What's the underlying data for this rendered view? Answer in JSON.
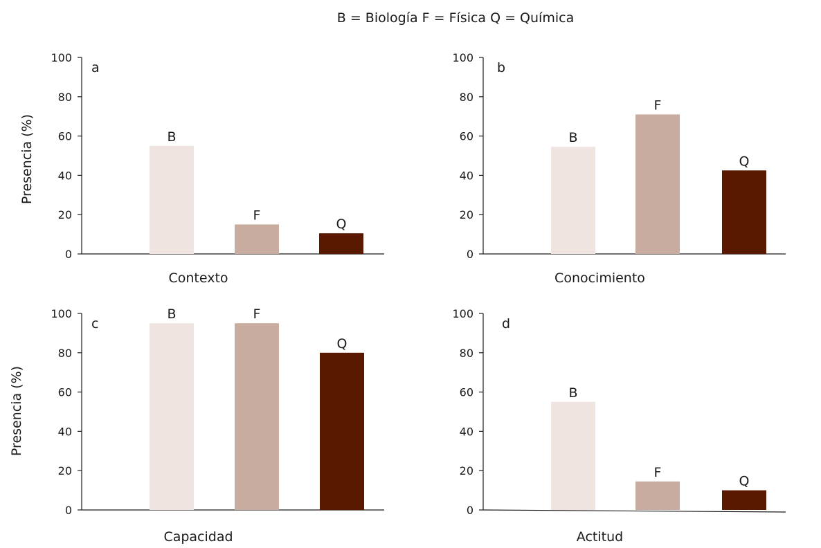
{
  "legend_text": "B = Biología   F = Física   Q = Química",
  "colors": {
    "B": "#efe4e0",
    "F": "#c8aca0",
    "Q": "#5a1800",
    "axis": "#1a1a1a"
  },
  "chart_data": [
    {
      "type": "bar",
      "panel": "a",
      "xlabel": "Contexto",
      "ylabel": "Presencia (%)",
      "categories": [
        "B",
        "F",
        "Q"
      ],
      "values": [
        55,
        15,
        10.5
      ],
      "ylim": [
        0,
        100
      ],
      "yticks": [
        0,
        20,
        40,
        60,
        80,
        100
      ],
      "grid": false
    },
    {
      "type": "bar",
      "panel": "b",
      "xlabel": "Conocimiento",
      "ylabel": "",
      "categories": [
        "B",
        "F",
        "Q"
      ],
      "values": [
        54.5,
        71,
        42.5
      ],
      "ylim": [
        0,
        100
      ],
      "yticks": [
        0,
        20,
        40,
        60,
        80,
        100
      ],
      "grid": false
    },
    {
      "type": "bar",
      "panel": "c",
      "xlabel": "Capacidad",
      "ylabel": "Presencia (%)",
      "categories": [
        "B",
        "F",
        "Q"
      ],
      "values": [
        95,
        95,
        80
      ],
      "ylim": [
        0,
        100
      ],
      "yticks": [
        0,
        20,
        40,
        60,
        80,
        100
      ],
      "grid": false
    },
    {
      "type": "bar",
      "panel": "d",
      "xlabel": "Actitud",
      "ylabel": "",
      "categories": [
        "B",
        "F",
        "Q"
      ],
      "values": [
        55,
        14.5,
        10
      ],
      "ylim": [
        0,
        100
      ],
      "yticks": [
        0,
        20,
        40,
        60,
        80,
        100
      ],
      "grid": false
    }
  ]
}
